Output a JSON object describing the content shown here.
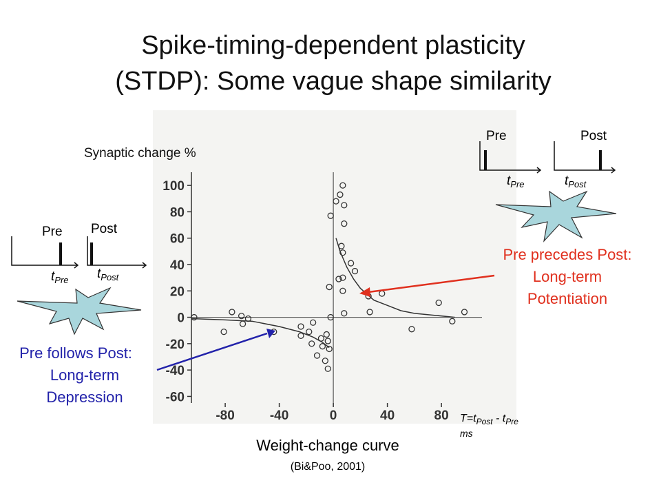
{
  "chart_data": {
    "type": "scatter",
    "y_label": "Synaptic change %",
    "x_label_parts": [
      "T=t",
      "Post",
      " - t",
      "Pre"
    ],
    "x_unit": "ms",
    "caption": "Weight-change curve",
    "source": "(Bi&Poo, 2001)",
    "xlim": [
      -105,
      110
    ],
    "ylim": [
      -65,
      110
    ],
    "xticks": [
      -80,
      -40,
      0,
      40,
      80
    ],
    "yticks": [
      -60,
      -40,
      -20,
      0,
      20,
      40,
      60,
      80,
      100
    ],
    "color": "#333333",
    "x": [
      -103,
      -81,
      -75,
      -68,
      -67,
      -63,
      -44,
      -24,
      -24,
      -18,
      -15,
      -16,
      -12,
      -9,
      -8,
      -6,
      -5,
      -4,
      -3,
      -4,
      -2,
      -2,
      -3,
      2,
      5,
      7,
      8,
      8,
      6,
      7,
      4,
      7,
      7,
      8,
      13,
      16,
      26,
      27,
      36,
      58,
      78,
      88,
      97
    ],
    "values": [
      0,
      -11,
      4,
      1,
      -5,
      -1,
      -11,
      -7,
      -14,
      -11,
      -4,
      -20,
      -29,
      -16,
      -22,
      -33,
      -13,
      -18,
      -24,
      -39,
      0,
      77,
      23,
      88,
      93,
      100,
      85,
      71,
      54,
      49,
      29,
      30,
      20,
      3,
      41,
      35,
      16,
      4,
      18,
      -9,
      11,
      -3,
      4
    ],
    "series": [
      {
        "color": "#333333",
        "x": [
          -105,
          -80,
          -60,
          -40,
          -25,
          -15,
          -8,
          -3
        ],
        "values": [
          -1,
          -2,
          -3,
          -7,
          -11,
          -15,
          -19,
          -23
        ]
      },
      {
        "color": "#333333",
        "x": [
          2,
          5,
          10,
          15,
          20,
          30,
          40,
          50,
          60,
          75,
          90
        ],
        "values": [
          60,
          50,
          38,
          29,
          22,
          13,
          9,
          5,
          3,
          1.5,
          0
        ]
      }
    ]
  },
  "slide": {
    "title_lines": [
      "Spike-timing-dependent plasticity",
      "(STDP): Some vague shape similarity"
    ],
    "ltp_lines": [
      "Pre precedes Post:",
      "Long-term",
      "Potentiation"
    ],
    "ltd_lines": [
      "Pre follows Post:",
      "Long-term",
      "Depression"
    ],
    "pre": "Pre",
    "post": "Post",
    "t": "t"
  }
}
